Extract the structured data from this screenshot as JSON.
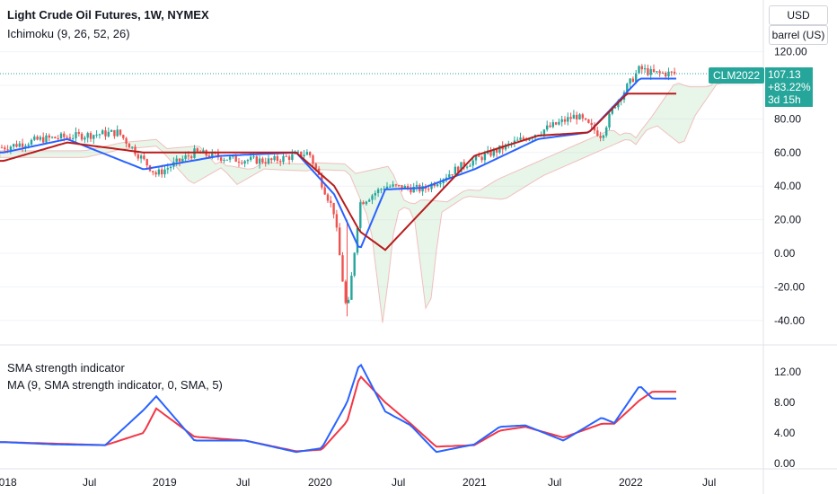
{
  "header": {
    "title": "Light Crude Oil Futures, 1W, NYMEX",
    "indicator": "Ichimoku (9, 26, 52, 26)"
  },
  "subpane": {
    "line1": "SMA strength indicator",
    "line2": "MA (9, SMA strength indicator, 0, SMA, 5)"
  },
  "price_scale": {
    "currency": "USD",
    "unit": "barrel (US)"
  },
  "last_price": {
    "symbol": "CLM2022",
    "price": "107.13",
    "change": "+83.22%",
    "countdown": "3d 15h"
  },
  "colors": {
    "up": "#26a69a",
    "down": "#ef5350",
    "conversion_line": "#2962ff",
    "base_line": "#b71c1c",
    "cloud_bull": "#a5d6a7",
    "cloud_bear": "#ef9a9a",
    "strength": "#2962ff",
    "strength_ma": "#f23645"
  },
  "chart_data": [
    {
      "type": "line",
      "name": "price",
      "y_ticks": [
        "120.00",
        "100.00",
        "80.00",
        "60.00",
        "40.00",
        "20.00",
        "0.00",
        "-20.00",
        "-40.00"
      ],
      "ylim": [
        -45,
        130
      ],
      "x_ticks": [
        "2018",
        "Jul",
        "2019",
        "Jul",
        "2020",
        "Jul",
        "2021",
        "Jul",
        "2022",
        "Jul"
      ],
      "series": [
        {
          "x": [
            "2018-01",
            "2018-04",
            "2018-07",
            "2018-10",
            "2019-01",
            "2019-04",
            "2019-07",
            "2019-10",
            "2020-01",
            "2020-03",
            "2020-04",
            "2020-05",
            "2020-07",
            "2020-10",
            "2021-01",
            "2021-04",
            "2021-07",
            "2021-10",
            "2021-12",
            "2022-01",
            "2022-03",
            "2022-04"
          ],
          "values": [
            63,
            68,
            70,
            72,
            47,
            60,
            56,
            55,
            60,
            24,
            -37.6,
            30,
            40,
            38,
            52,
            62,
            72,
            82,
            70,
            88,
            110,
            107.13
          ]
        },
        {
          "x": [
            "2018-01",
            "2018-06",
            "2018-12",
            "2019-06",
            "2019-12",
            "2020-03",
            "2020-05",
            "2020-07",
            "2020-10",
            "2021-02",
            "2021-07",
            "2021-11",
            "2022-03",
            "2022-04"
          ],
          "values": [
            60,
            68,
            50,
            58,
            60,
            35,
            2,
            38,
            39,
            50,
            68,
            72,
            104,
            104
          ]
        },
        {
          "x": [
            "2018-01",
            "2018-06",
            "2018-12",
            "2019-06",
            "2019-12",
            "2020-03",
            "2020-05",
            "2020-07",
            "2020-10",
            "2021-02",
            "2021-07",
            "2021-11",
            "2022-02",
            "2022-04"
          ],
          "values": [
            55,
            66,
            60,
            60,
            60,
            40,
            13,
            2,
            26,
            58,
            70,
            72,
            95,
            95
          ]
        }
      ]
    },
    {
      "type": "line",
      "name": "SMA strength indicator",
      "y_ticks": [
        "12.00",
        "8.00",
        "4.00",
        "0.00"
      ],
      "ylim": [
        0,
        14
      ],
      "series": [
        {
          "x": [
            "2018-01",
            "2018-05",
            "2018-09",
            "2018-12",
            "2019-01",
            "2019-04",
            "2019-08",
            "2019-12",
            "2020-02",
            "2020-04",
            "2020-05",
            "2020-07",
            "2020-09",
            "2020-11",
            "2021-02",
            "2021-04",
            "2021-06",
            "2021-09",
            "2021-12",
            "2022-01",
            "2022-03",
            "2022-04"
          ],
          "values": [
            2.8,
            2.5,
            2.4,
            7,
            8.8,
            3,
            3,
            1.5,
            2,
            8,
            13.2,
            6.8,
            5,
            1.5,
            2.5,
            4.8,
            5,
            3,
            6,
            5.3,
            10.2,
            8.5
          ]
        },
        {
          "x": [
            "2018-01",
            "2018-05",
            "2018-09",
            "2018-12",
            "2019-01",
            "2019-04",
            "2019-08",
            "2019-12",
            "2020-02",
            "2020-04",
            "2020-05",
            "2020-07",
            "2020-09",
            "2020-11",
            "2021-02",
            "2021-04",
            "2021-06",
            "2021-09",
            "2021-12",
            "2022-01",
            "2022-03",
            "2022-04"
          ],
          "values": [
            2.8,
            2.6,
            2.4,
            4,
            7.2,
            3.5,
            3,
            1.6,
            1.8,
            5.5,
            11.5,
            8,
            5.2,
            2.2,
            2.4,
            4.3,
            4.8,
            3.4,
            5.2,
            5.2,
            8.3,
            9.4
          ]
        }
      ]
    }
  ]
}
